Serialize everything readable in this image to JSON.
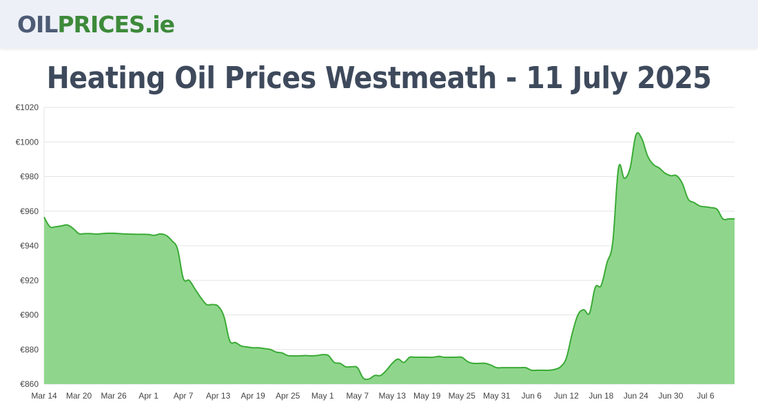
{
  "header": {
    "logo_oil": "OIL",
    "logo_prices": "PRICES",
    "logo_ie": ".ie"
  },
  "page": {
    "title": "Heating Oil Prices Westmeath - 11 July 2025"
  },
  "colors": {
    "line": "#3aaa35",
    "fill": "#8fd68c",
    "grid": "#e3e3e3"
  },
  "chart_data": {
    "type": "area",
    "title": "Heating Oil Prices Westmeath - 11 July 2025",
    "xlabel": "",
    "ylabel": "",
    "ylim": [
      860,
      1020
    ],
    "y_ticks": [
      {
        "value": 1020,
        "label": "€1020"
      },
      {
        "value": 1000,
        "label": "€1000"
      },
      {
        "value": 980,
        "label": "€980"
      },
      {
        "value": 960,
        "label": "€960"
      },
      {
        "value": 940,
        "label": "€940"
      },
      {
        "value": 920,
        "label": "€920"
      },
      {
        "value": 900,
        "label": "€900"
      },
      {
        "value": 880,
        "label": "€880"
      },
      {
        "value": 860,
        "label": "€860"
      }
    ],
    "x_range_days": [
      0,
      119
    ],
    "x_ticks": [
      {
        "day": 0,
        "label": "Mar 14"
      },
      {
        "day": 6,
        "label": "Mar 20"
      },
      {
        "day": 12,
        "label": "Mar 26"
      },
      {
        "day": 18,
        "label": "Apr 1"
      },
      {
        "day": 24,
        "label": "Apr 7"
      },
      {
        "day": 30,
        "label": "Apr 13"
      },
      {
        "day": 36,
        "label": "Apr 19"
      },
      {
        "day": 42,
        "label": "Apr 25"
      },
      {
        "day": 48,
        "label": "May 1"
      },
      {
        "day": 54,
        "label": "May 7"
      },
      {
        "day": 60,
        "label": "May 13"
      },
      {
        "day": 66,
        "label": "May 19"
      },
      {
        "day": 72,
        "label": "May 25"
      },
      {
        "day": 78,
        "label": "May 31"
      },
      {
        "day": 84,
        "label": "Jun 6"
      },
      {
        "day": 90,
        "label": "Jun 12"
      },
      {
        "day": 96,
        "label": "Jun 18"
      },
      {
        "day": 102,
        "label": "Jun 24"
      },
      {
        "day": 108,
        "label": "Jun 30"
      },
      {
        "day": 114,
        "label": "Jul 6"
      }
    ],
    "series": [
      {
        "name": "Heating Oil Price",
        "points": [
          [
            0,
            956.5
          ],
          [
            1,
            951
          ],
          [
            2,
            951
          ],
          [
            3,
            951.5
          ],
          [
            4,
            952
          ],
          [
            5,
            950
          ],
          [
            6,
            947
          ],
          [
            7,
            947
          ],
          [
            8,
            947
          ],
          [
            9,
            946.7
          ],
          [
            10,
            947
          ],
          [
            11,
            947.2
          ],
          [
            12,
            947.2
          ],
          [
            13,
            947
          ],
          [
            14,
            946.8
          ],
          [
            15,
            946.7
          ],
          [
            16,
            946.6
          ],
          [
            17,
            946.6
          ],
          [
            18,
            946.5
          ],
          [
            19,
            946
          ],
          [
            20,
            946.8
          ],
          [
            21,
            946
          ],
          [
            22,
            943
          ],
          [
            23,
            938
          ],
          [
            24,
            921
          ],
          [
            25,
            920
          ],
          [
            26,
            915
          ],
          [
            27,
            910
          ],
          [
            28,
            906
          ],
          [
            29,
            906
          ],
          [
            30,
            905
          ],
          [
            31,
            899
          ],
          [
            32,
            885
          ],
          [
            33,
            884
          ],
          [
            34,
            882
          ],
          [
            35,
            881.5
          ],
          [
            36,
            881
          ],
          [
            37,
            881
          ],
          [
            38,
            880.5
          ],
          [
            39,
            880
          ],
          [
            40,
            878.5
          ],
          [
            41,
            878
          ],
          [
            42,
            876.5
          ],
          [
            43,
            876.3
          ],
          [
            44,
            876.3
          ],
          [
            45,
            876.5
          ],
          [
            46,
            876.3
          ],
          [
            47,
            876.5
          ],
          [
            48,
            877
          ],
          [
            49,
            876.5
          ],
          [
            50,
            872.5
          ],
          [
            51,
            872
          ],
          [
            52,
            870
          ],
          [
            53,
            870
          ],
          [
            54,
            869.5
          ],
          [
            55,
            863.5
          ],
          [
            56,
            863
          ],
          [
            57,
            865
          ],
          [
            58,
            865
          ],
          [
            59,
            868
          ],
          [
            60,
            872
          ],
          [
            61,
            874.5
          ],
          [
            62,
            872.5
          ],
          [
            63,
            875.5
          ],
          [
            64,
            875.5
          ],
          [
            65,
            875.5
          ],
          [
            66,
            875.5
          ],
          [
            67,
            875.5
          ],
          [
            68,
            876
          ],
          [
            69,
            875.5
          ],
          [
            70,
            875.5
          ],
          [
            71,
            875.5
          ],
          [
            72,
            875.5
          ],
          [
            73,
            873
          ],
          [
            74,
            872
          ],
          [
            75,
            872
          ],
          [
            76,
            872
          ],
          [
            77,
            871
          ],
          [
            78,
            869.5
          ],
          [
            79,
            869.5
          ],
          [
            80,
            869.5
          ],
          [
            81,
            869.5
          ],
          [
            82,
            869.5
          ],
          [
            83,
            869.5
          ],
          [
            84,
            868
          ],
          [
            85,
            868
          ],
          [
            86,
            868
          ],
          [
            87,
            868
          ],
          [
            88,
            868.5
          ],
          [
            89,
            870
          ],
          [
            90,
            875
          ],
          [
            91,
            889
          ],
          [
            92,
            900
          ],
          [
            93,
            903
          ],
          [
            94,
            901
          ],
          [
            95,
            916
          ],
          [
            96,
            917
          ],
          [
            97,
            930
          ],
          [
            98,
            942
          ],
          [
            99,
            985
          ],
          [
            100,
            979
          ],
          [
            101,
            985
          ],
          [
            102,
            1004
          ],
          [
            103,
            1002
          ],
          [
            104,
            992
          ],
          [
            105,
            987
          ],
          [
            106,
            985
          ],
          [
            107,
            982
          ],
          [
            108,
            980.5
          ],
          [
            109,
            980.5
          ],
          [
            110,
            976
          ],
          [
            111,
            967
          ],
          [
            112,
            965
          ],
          [
            113,
            963
          ],
          [
            114,
            962.5
          ],
          [
            115,
            962
          ],
          [
            116,
            961
          ],
          [
            117,
            955.5
          ],
          [
            118,
            955.5
          ],
          [
            119,
            955.5
          ]
        ]
      }
    ]
  }
}
